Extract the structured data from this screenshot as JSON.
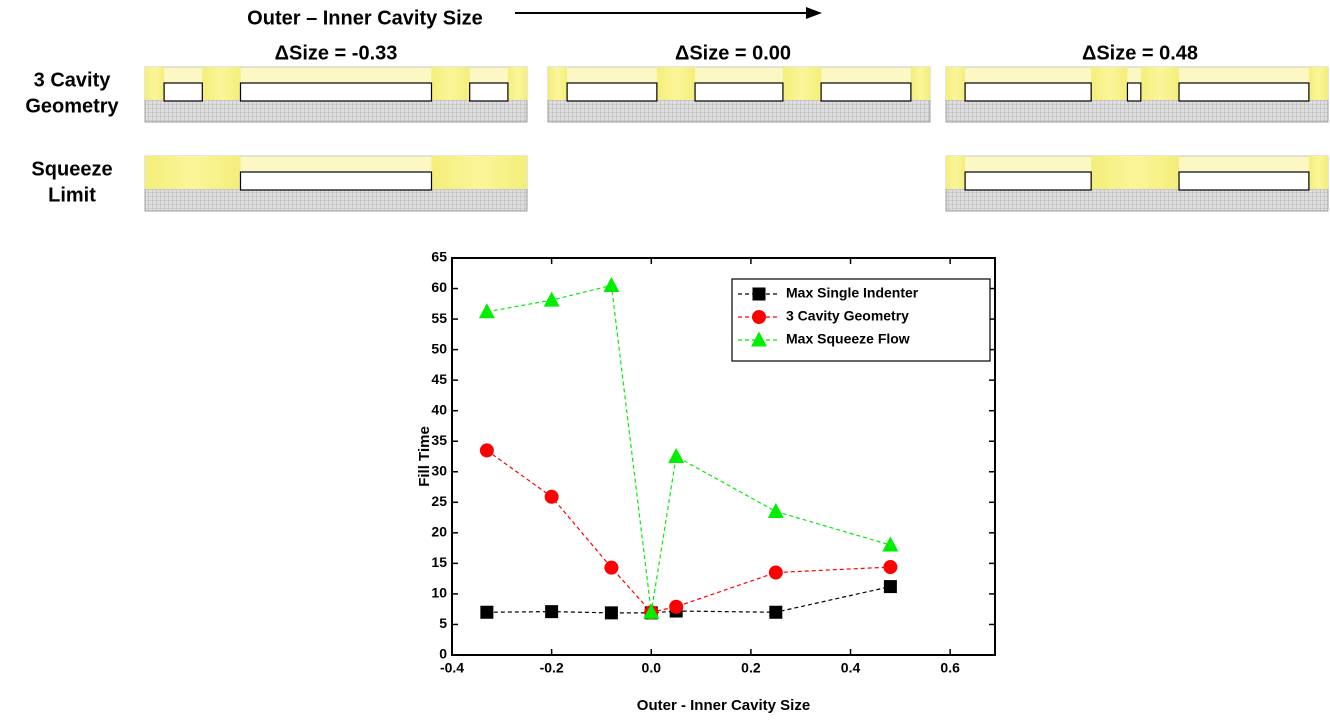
{
  "panel": {
    "heading": "Outer – Inner Cavity Size",
    "columns": [
      "ΔSize = -0.33",
      "ΔSize = 0.00",
      "ΔSize = 0.48"
    ],
    "rows": [
      [
        "3 Cavity",
        "Geometry"
      ],
      [
        "Squeeze",
        "Limit"
      ]
    ]
  },
  "chart_data": {
    "type": "line",
    "x_label": "Outer - Inner Cavity Size",
    "y_label": "Fill Time",
    "x": [
      -0.33,
      -0.2,
      -0.08,
      0,
      0.05,
      0.25,
      0.48
    ],
    "series": [
      {
        "name": "Max Single Indenter",
        "color": "#000000",
        "marker": "square",
        "values": [
          7,
          7.1,
          6.9,
          6.9,
          7.2,
          7,
          11.2
        ]
      },
      {
        "name": "3 Cavity Geometry",
        "color": "#ff0000",
        "marker": "circle",
        "values": [
          33.5,
          25.9,
          14.3,
          7,
          7.9,
          13.5,
          14.4
        ]
      },
      {
        "name": "Max Squeeze Flow",
        "color": "#00ee00",
        "marker": "triangle",
        "values": [
          56.2,
          58.1,
          60.5,
          7,
          32.5,
          23.5,
          18
        ]
      }
    ],
    "xlim": [
      -0.4,
      0.69
    ],
    "ylim": [
      0,
      65
    ],
    "xticks": [
      -0.4,
      -0.2,
      {
        "value": 0,
        "label": "0.0"
      },
      0.2,
      0.4,
      0.6
    ],
    "yticks": [
      0,
      5,
      10,
      15,
      20,
      25,
      30,
      35,
      40,
      45,
      50,
      55,
      60,
      65
    ],
    "legend": "upper right"
  }
}
